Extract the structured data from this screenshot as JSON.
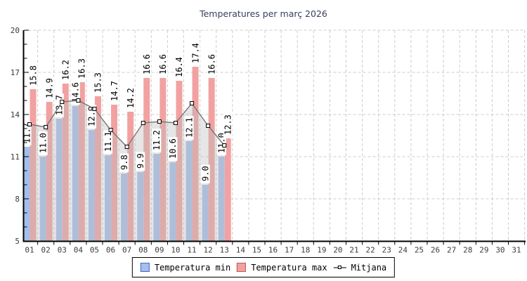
{
  "title": "Temperatures per març 2026",
  "legend": {
    "min": "Temperatura min",
    "max": "Temperatura max",
    "mean": "Mitjana"
  },
  "colors": {
    "min_bar": "#a5bfec",
    "min_swatch_border": "#4466cc",
    "max_bar": "#f2a1a1",
    "max_swatch_border": "#c05555",
    "mean_line": "#777777",
    "marker_fill": "#ffffff",
    "marker_border": "#000000",
    "area_fill": "#bebebe",
    "grid": "#cccccc",
    "axis": "#000000",
    "tick_label": "#3c3c3c",
    "value_label": "#000000",
    "title": "#384060"
  },
  "chart_data": {
    "type": "bar",
    "title": "Temperatures per març 2026",
    "categories": [
      "01",
      "02",
      "03",
      "04",
      "05",
      "06",
      "07",
      "08",
      "09",
      "10",
      "11",
      "12",
      "13",
      "14",
      "15",
      "16",
      "17",
      "18",
      "19",
      "20",
      "21",
      "22",
      "23",
      "24",
      "25",
      "26",
      "27",
      "28",
      "29",
      "30",
      "31"
    ],
    "series": [
      {
        "name": "Temperatura min",
        "type": "bar",
        "values": [
          11.7,
          11.0,
          13.7,
          14.6,
          12.9,
          11.1,
          9.8,
          9.9,
          11.2,
          10.6,
          12.1,
          9.0,
          11.0
        ]
      },
      {
        "name": "Temperatura max",
        "type": "bar",
        "values": [
          15.8,
          14.9,
          16.2,
          16.3,
          15.3,
          14.7,
          14.2,
          16.6,
          16.6,
          16.4,
          17.4,
          16.6,
          12.3
        ]
      },
      {
        "name": "Mitjana",
        "type": "line",
        "values": [
          13.3,
          13.1,
          14.9,
          15.0,
          14.4,
          12.9,
          11.7,
          13.4,
          13.5,
          13.4,
          14.8,
          13.2,
          11.8
        ]
      }
    ],
    "xlabel": "",
    "ylabel": "",
    "ylim": [
      5,
      20
    ],
    "yticks": [
      5,
      8,
      11,
      14,
      17,
      20
    ],
    "y_minor_step": 1,
    "grid": true,
    "bar_value_labels": true,
    "legend_position": "bottom"
  }
}
